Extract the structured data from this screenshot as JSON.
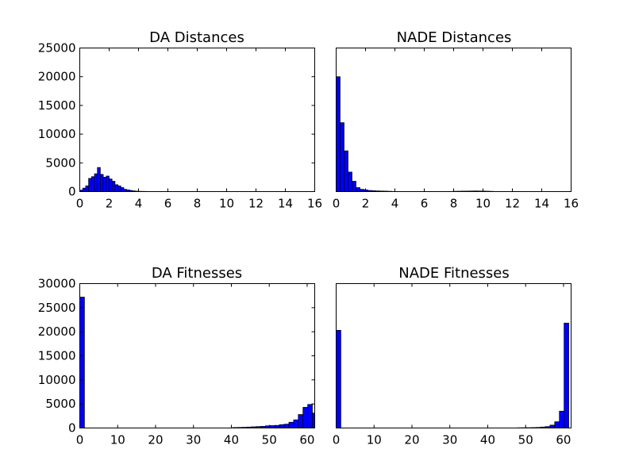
{
  "chart_data": [
    {
      "type": "bar",
      "title": "DA Distances",
      "xlabel": "",
      "ylabel": "",
      "xlim": [
        0,
        16
      ],
      "ylim": [
        0,
        25000
      ],
      "xticks": [
        0,
        2,
        4,
        6,
        8,
        10,
        12,
        14,
        16
      ],
      "yticks": [
        0,
        5000,
        10000,
        15000,
        20000,
        25000
      ],
      "grid": false,
      "bar_color": "#0000ff",
      "bin_width": 0.2,
      "bins_start": [
        0,
        0.2,
        0.4,
        0.6,
        0.8,
        1.0,
        1.2,
        1.4,
        1.6,
        1.8,
        2.0,
        2.2,
        2.4,
        2.6,
        2.8,
        3.0,
        3.2,
        3.4,
        3.6,
        3.8,
        4.0,
        4.2,
        4.4,
        4.6,
        4.8,
        5.0,
        5.2
      ],
      "values": [
        250,
        600,
        1000,
        2300,
        2600,
        3100,
        4200,
        3000,
        2500,
        2700,
        2200,
        1800,
        1200,
        1000,
        700,
        400,
        300,
        200,
        120,
        80,
        50,
        40,
        30,
        20,
        15,
        10,
        8
      ]
    },
    {
      "type": "bar",
      "title": "NADE Distances",
      "xlabel": "",
      "ylabel": "",
      "xlim": [
        0,
        16
      ],
      "ylim": [
        0,
        25000
      ],
      "xticks": [
        0,
        2,
        4,
        6,
        8,
        10,
        12,
        14,
        16
      ],
      "yticks": [],
      "grid": false,
      "bar_color": "#0000ff",
      "bin_width": 0.27,
      "bins_start": [
        0,
        0.27,
        0.54,
        0.81,
        1.08,
        1.35,
        1.62,
        1.89,
        2.16,
        2.43,
        2.7,
        2.97,
        3.24,
        3.51,
        8.0,
        8.27,
        8.54,
        8.81,
        9.08,
        9.35,
        9.62,
        9.89,
        10.16,
        10.43,
        12.0,
        12.27,
        12.54
      ],
      "values": [
        20000,
        12000,
        7100,
        3400,
        1800,
        700,
        400,
        300,
        200,
        150,
        120,
        100,
        80,
        60,
        60,
        70,
        80,
        90,
        100,
        110,
        100,
        90,
        70,
        50,
        30,
        25,
        20
      ]
    },
    {
      "type": "bar",
      "title": "DA Fitnesses",
      "xlabel": "",
      "ylabel": "",
      "xlim": [
        0,
        62
      ],
      "ylim": [
        0,
        30000
      ],
      "xticks": [
        0,
        10,
        20,
        30,
        40,
        50,
        60
      ],
      "yticks": [
        0,
        5000,
        10000,
        15000,
        20000,
        25000,
        30000
      ],
      "grid": false,
      "bar_color": "#0000ff",
      "bin_width": 1.24,
      "bins_start": [
        0,
        40.3,
        41.54,
        42.78,
        44.02,
        45.26,
        46.5,
        47.74,
        48.98,
        50.22,
        51.46,
        52.7,
        53.94,
        55.18,
        56.42,
        57.66,
        58.9,
        60.14,
        61.38
      ],
      "values": [
        27200,
        100,
        120,
        150,
        200,
        250,
        300,
        350,
        450,
        500,
        550,
        700,
        800,
        1200,
        1700,
        2800,
        4300,
        4900,
        3100
      ]
    },
    {
      "type": "bar",
      "title": "NADE Fitnesses",
      "xlabel": "",
      "ylabel": "",
      "xlim": [
        0,
        62
      ],
      "ylim": [
        0,
        30000
      ],
      "xticks": [
        0,
        10,
        20,
        30,
        40,
        50,
        60
      ],
      "yticks": [],
      "grid": false,
      "bar_color": "#0000ff",
      "bin_width": 1.24,
      "bins_start": [
        0,
        47.74,
        48.98,
        50.22,
        51.46,
        52.7,
        53.94,
        55.18,
        56.42,
        57.66,
        58.9,
        60.14
      ],
      "values": [
        20300,
        50,
        60,
        70,
        90,
        120,
        200,
        300,
        600,
        1300,
        3500,
        21800
      ]
    }
  ]
}
